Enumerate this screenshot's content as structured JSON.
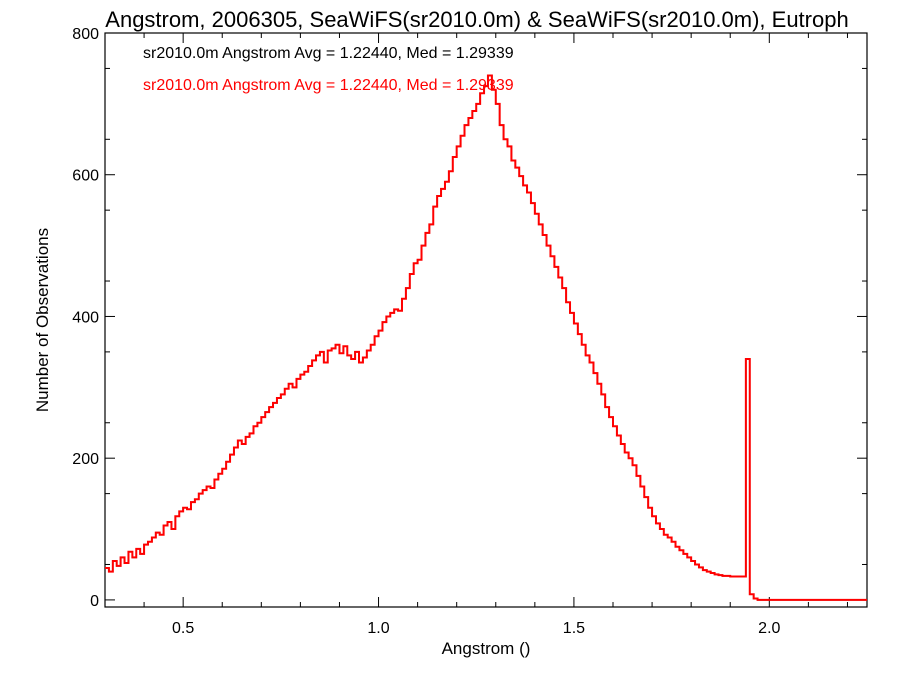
{
  "chart_data": {
    "type": "step-histogram",
    "title": "Angstrom, 2006305, SeaWiFS(sr2010.0m) & SeaWiFS(sr2010.0m), Eutroph",
    "xlabel": "Angstrom ()",
    "ylabel": "Number of Observations",
    "xlim": [
      0.3,
      2.25
    ],
    "ylim": [
      -10,
      800
    ],
    "x_ticks": [
      0.5,
      1.0,
      1.5,
      2.0
    ],
    "x_tick_labels": [
      "0.5",
      "1.0",
      "1.5",
      "2.0"
    ],
    "y_ticks": [
      0,
      200,
      400,
      600,
      800
    ],
    "y_tick_labels": [
      "0",
      "200",
      "400",
      "600",
      "800"
    ],
    "bin_width": 0.01,
    "bin_start": 0.3,
    "annotations": [
      {
        "text": "sr2010.0m Angstrom Avg = 1.22440, Med = 1.29339",
        "color": "#000000"
      },
      {
        "text": "sr2010.0m Angstrom Avg = 1.22440, Med = 1.29339",
        "color": "#ff0000"
      }
    ],
    "series": [
      {
        "color": "#ff0000",
        "values": [
          45,
          40,
          55,
          48,
          60,
          52,
          68,
          60,
          72,
          65,
          78,
          82,
          88,
          95,
          92,
          105,
          110,
          100,
          118,
          125,
          130,
          128,
          138,
          142,
          150,
          155,
          160,
          158,
          170,
          178,
          185,
          195,
          205,
          215,
          225,
          220,
          230,
          235,
          245,
          250,
          258,
          265,
          272,
          278,
          285,
          290,
          298,
          305,
          300,
          312,
          318,
          322,
          330,
          338,
          345,
          350,
          335,
          352,
          355,
          360,
          348,
          358,
          345,
          340,
          350,
          335,
          342,
          352,
          360,
          372,
          380,
          392,
          400,
          405,
          410,
          408,
          425,
          440,
          460,
          475,
          480,
          500,
          518,
          530,
          555,
          570,
          580,
          590,
          605,
          625,
          640,
          655,
          670,
          680,
          690,
          700,
          715,
          725,
          740,
          720,
          700,
          670,
          650,
          640,
          620,
          610,
          598,
          585,
          575,
          560,
          545,
          530,
          515,
          500,
          485,
          470,
          455,
          440,
          420,
          405,
          390,
          375,
          360,
          345,
          335,
          320,
          305,
          290,
          272,
          258,
          245,
          232,
          220,
          208,
          200,
          190,
          175,
          160,
          145,
          130,
          118,
          108,
          100,
          92,
          88,
          82,
          75,
          70,
          65,
          60,
          55,
          50,
          46,
          42,
          40,
          38,
          36,
          35,
          34,
          34,
          33,
          33,
          33,
          33,
          340,
          8,
          2,
          0,
          0,
          0,
          0,
          0,
          0,
          0,
          0
        ]
      },
      {
        "color": "#000000",
        "values": [
          45,
          40,
          55,
          48,
          60,
          52,
          68,
          60,
          72,
          65,
          78,
          82,
          88,
          95,
          92,
          105,
          110,
          100,
          118,
          125,
          130,
          128,
          138,
          142,
          150,
          155,
          160,
          158,
          170,
          178,
          185,
          195,
          205,
          215,
          225,
          220,
          230,
          235,
          245,
          250,
          258,
          265,
          272,
          278,
          285,
          290,
          298,
          305,
          300,
          312,
          318,
          322,
          330,
          338,
          345,
          350,
          335,
          352,
          355,
          360,
          348,
          358,
          345,
          340,
          350,
          335,
          342,
          352,
          360,
          372,
          380,
          392,
          400,
          405,
          410,
          408,
          425,
          440,
          460,
          475,
          480,
          500,
          518,
          530,
          555,
          570,
          580,
          590,
          605,
          625,
          640,
          655,
          670,
          680,
          690,
          700,
          715,
          725,
          740,
          720,
          700,
          670,
          650,
          640,
          620,
          610,
          598,
          585,
          575,
          560,
          545,
          530,
          515,
          500,
          485,
          470,
          455,
          440,
          420,
          405,
          390,
          375,
          360,
          345,
          335,
          320,
          305,
          290,
          272,
          258,
          245,
          232,
          220,
          208,
          200,
          190,
          175,
          160,
          145,
          130,
          118,
          108,
          100,
          92,
          88,
          82,
          75,
          70,
          65,
          60,
          55,
          50,
          46,
          42,
          40,
          38,
          36,
          35,
          34,
          34,
          33,
          33,
          33,
          33,
          340,
          8,
          2,
          0,
          0,
          0,
          0,
          0,
          0,
          0,
          0
        ]
      }
    ]
  }
}
